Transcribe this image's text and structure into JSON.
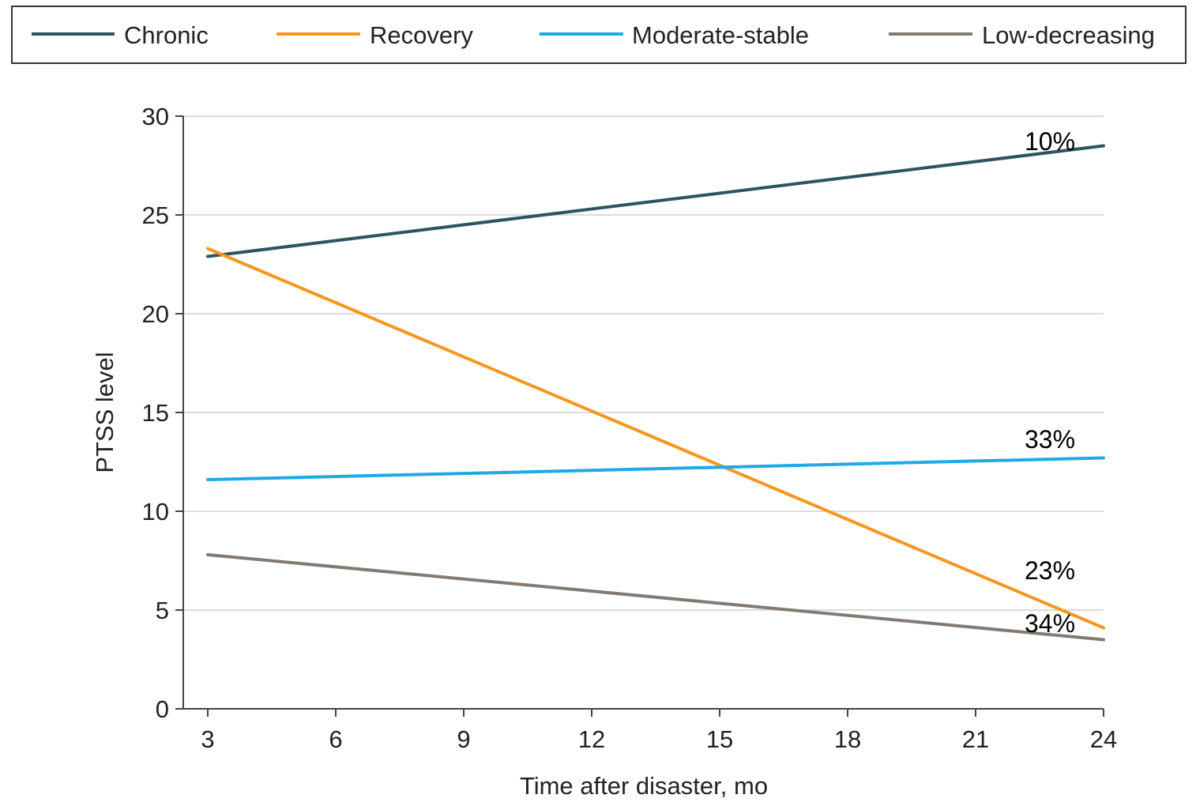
{
  "chart_data": {
    "type": "line",
    "title": "",
    "xlabel": "Time after disaster, mo",
    "ylabel": "PTSS level",
    "xlim": [
      3,
      24
    ],
    "ylim": [
      0,
      30
    ],
    "xticks": [
      3,
      6,
      9,
      12,
      15,
      18,
      21,
      24
    ],
    "yticks": [
      0,
      5,
      10,
      15,
      20,
      25,
      30
    ],
    "grid": "horizontal",
    "legend_position": "top",
    "series": [
      {
        "name": "Chronic",
        "color": "#2e5461",
        "x": [
          3,
          24
        ],
        "y": [
          22.9,
          28.5
        ],
        "end_label": "10%"
      },
      {
        "name": "Recovery",
        "color": "#f7961e",
        "x": [
          3,
          24
        ],
        "y": [
          23.3,
          4.1
        ],
        "end_label": "23%"
      },
      {
        "name": "Moderate-stable",
        "color": "#1fa9e6",
        "x": [
          3,
          24
        ],
        "y": [
          11.6,
          12.7
        ],
        "end_label": "33%"
      },
      {
        "name": "Low-decreasing",
        "color": "#857a72",
        "x": [
          3,
          24
        ],
        "y": [
          7.8,
          3.5
        ],
        "end_label": "34%"
      }
    ]
  }
}
